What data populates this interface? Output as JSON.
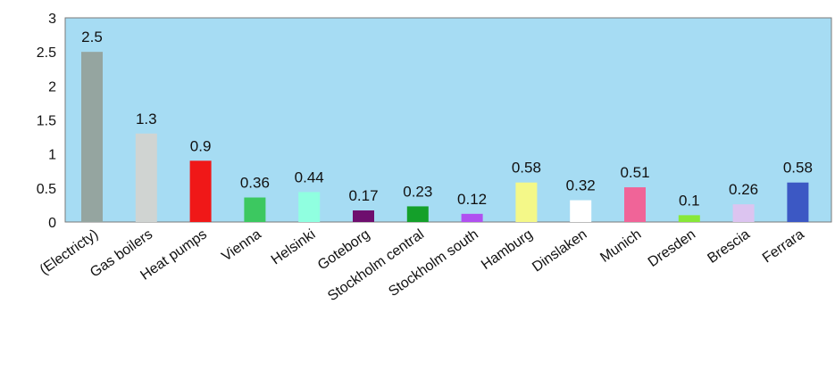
{
  "chart_data": {
    "type": "bar",
    "categories": [
      "(Electricty)",
      "Gas boilers",
      "Heat pumps",
      "Vienna",
      "Helsinki",
      "Goteborg",
      "Stockholm central",
      "Stockholm south",
      "Hamburg",
      "Dinslaken",
      "Munich",
      "Dresden",
      "Brescia",
      "Ferrara"
    ],
    "values": [
      2.5,
      1.3,
      0.9,
      0.36,
      0.44,
      0.17,
      0.23,
      0.12,
      0.58,
      0.32,
      0.51,
      0.1,
      0.26,
      0.58
    ],
    "data_labels": [
      "2.5",
      "1.3",
      "0.9",
      "0.36",
      "0.44",
      "0.17",
      "0.23",
      "0.12",
      "0.58",
      "0.32",
      "0.51",
      "0.1",
      "0.26",
      "0.58"
    ],
    "bar_colors": [
      "#95a5a0",
      "#d0d4d2",
      "#f01818",
      "#3cc860",
      "#90ffe0",
      "#6e0e6e",
      "#14a02a",
      "#b050f0",
      "#f4f888",
      "#ffffff",
      "#f06498",
      "#88e838",
      "#dcc4f0",
      "#3c58c4"
    ],
    "ylim": [
      0,
      3
    ],
    "yticks": [
      "0",
      "0.5",
      "1",
      "1.5",
      "2",
      "2.5",
      "3"
    ],
    "grid": false,
    "legend": "none",
    "title": "",
    "xlabel": "",
    "ylabel": "",
    "plot_background": "#a6dcf3"
  }
}
